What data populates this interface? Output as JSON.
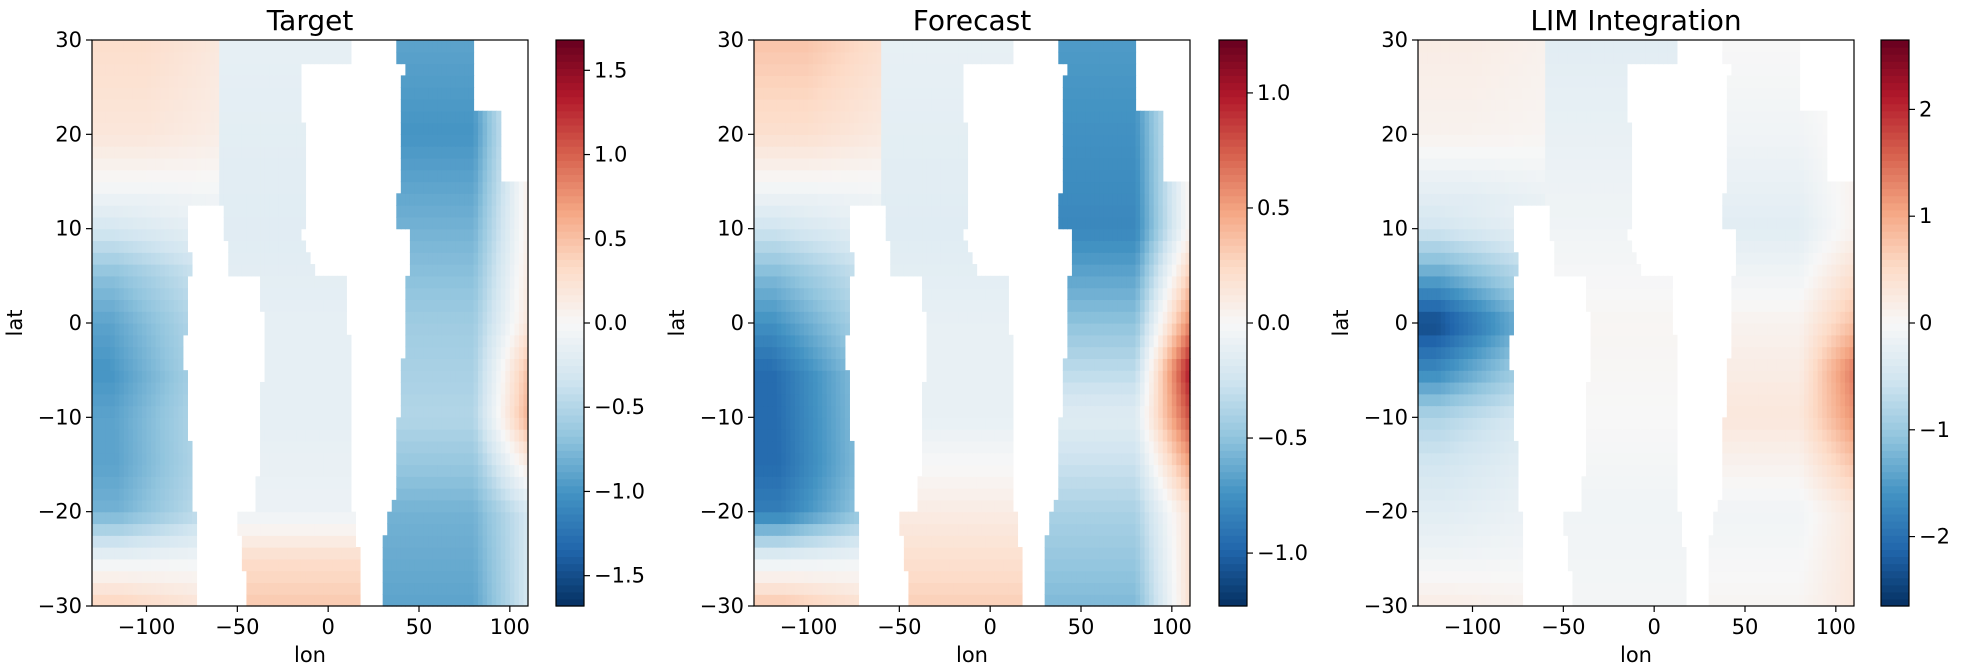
{
  "chart_data": [
    {
      "type": "heatmap",
      "title": "Target",
      "xlabel": "lon",
      "ylabel": "lat",
      "xlim": [
        -130,
        110
      ],
      "ylim": [
        -30,
        30
      ],
      "xticks": [
        -100,
        -50,
        0,
        50,
        100
      ],
      "xtick_labels": [
        "−100",
        "−50",
        "0",
        "50",
        "100"
      ],
      "yticks": [
        -30,
        -20,
        -10,
        0,
        10,
        20,
        30
      ],
      "ytick_labels": [
        "−30",
        "−20",
        "−10",
        "0",
        "10",
        "20",
        "30"
      ],
      "colormap": "RdBu_r",
      "colorbar": {
        "vmin": -1.68,
        "vmax": 1.68,
        "ticks": [
          -1.5,
          -1.0,
          -0.5,
          0.0,
          0.5,
          1.0,
          1.5
        ],
        "tick_labels": [
          "−1.5",
          "−1.0",
          "−0.5",
          "0.0",
          "0.5",
          "1.0",
          "1.5"
        ]
      },
      "field": {
        "west": [
          {
            "lat": 30,
            "value": 0.3
          },
          {
            "lat": 20,
            "value": 0.2
          },
          {
            "lat": 15,
            "value": 0.0
          },
          {
            "lat": 10,
            "value": -0.3
          },
          {
            "lat": 5,
            "value": -0.7
          },
          {
            "lat": 0,
            "value": -0.9
          },
          {
            "lat": -5,
            "value": -1.0
          },
          {
            "lat": -10,
            "value": -0.9
          },
          {
            "lat": -15,
            "value": -0.9
          },
          {
            "lat": -20,
            "value": -0.8
          },
          {
            "lat": -25,
            "value": -0.1
          },
          {
            "lat": -30,
            "value": 0.4
          }
        ],
        "central": [
          {
            "lat": 30,
            "value": -0.15
          },
          {
            "lat": 10,
            "value": -0.2
          },
          {
            "lat": 0,
            "value": -0.15
          },
          {
            "lat": -10,
            "value": -0.15
          },
          {
            "lat": -20,
            "value": -0.1
          },
          {
            "lat": -25,
            "value": 0.3
          },
          {
            "lat": -30,
            "value": 0.45
          }
        ],
        "east": [
          {
            "lat": 30,
            "value": -0.9
          },
          {
            "lat": 20,
            "value": -1.0
          },
          {
            "lat": 10,
            "value": -0.8
          },
          {
            "lat": 0,
            "value": -0.6
          },
          {
            "lat": -10,
            "value": -0.5
          },
          {
            "lat": -20,
            "value": -0.8
          },
          {
            "lat": -30,
            "value": -0.9
          }
        ],
        "east_coast": [
          {
            "lat": 10,
            "value": 0.1
          },
          {
            "lat": 0,
            "value": 0.2
          },
          {
            "lat": -5,
            "value": 0.5
          },
          {
            "lat": -10,
            "value": 0.6
          },
          {
            "lat": -20,
            "value": -0.3
          }
        ]
      }
    },
    {
      "type": "heatmap",
      "title": "Forecast",
      "xlabel": "lon",
      "ylabel": "lat",
      "xlim": [
        -130,
        110
      ],
      "ylim": [
        -30,
        30
      ],
      "xticks": [
        -100,
        -50,
        0,
        50,
        100
      ],
      "xtick_labels": [
        "−100",
        "−50",
        "0",
        "50",
        "100"
      ],
      "yticks": [
        -30,
        -20,
        -10,
        0,
        10,
        20,
        30
      ],
      "ytick_labels": [
        "−30",
        "−20",
        "−10",
        "0",
        "10",
        "20",
        "30"
      ],
      "colormap": "RdBu_r",
      "colorbar": {
        "vmin": -1.23,
        "vmax": 1.23,
        "ticks": [
          -1.0,
          -0.5,
          0.0,
          0.5,
          1.0
        ],
        "tick_labels": [
          "−1.0",
          "−0.5",
          "0.0",
          "0.5",
          "1.0"
        ]
      },
      "field": {
        "west": [
          {
            "lat": 30,
            "value": 0.35
          },
          {
            "lat": 20,
            "value": 0.2
          },
          {
            "lat": 15,
            "value": 0.0
          },
          {
            "lat": 10,
            "value": -0.25
          },
          {
            "lat": 5,
            "value": -0.55
          },
          {
            "lat": 0,
            "value": -0.75
          },
          {
            "lat": -5,
            "value": -0.95
          },
          {
            "lat": -10,
            "value": -0.95
          },
          {
            "lat": -15,
            "value": -0.95
          },
          {
            "lat": -20,
            "value": -0.85
          },
          {
            "lat": -25,
            "value": -0.1
          },
          {
            "lat": -30,
            "value": 0.35
          }
        ],
        "central": [
          {
            "lat": 30,
            "value": -0.1
          },
          {
            "lat": 10,
            "value": -0.15
          },
          {
            "lat": 0,
            "value": -0.1
          },
          {
            "lat": -10,
            "value": -0.1
          },
          {
            "lat": -20,
            "value": 0.1
          },
          {
            "lat": -25,
            "value": 0.2
          },
          {
            "lat": -30,
            "value": 0.3
          }
        ],
        "east": [
          {
            "lat": 30,
            "value": -0.7
          },
          {
            "lat": 20,
            "value": -0.75
          },
          {
            "lat": 10,
            "value": -0.8
          },
          {
            "lat": 0,
            "value": -0.5
          },
          {
            "lat": -10,
            "value": -0.15
          },
          {
            "lat": -20,
            "value": -0.4
          },
          {
            "lat": -30,
            "value": -0.55
          }
        ],
        "east_coast": [
          {
            "lat": 10,
            "value": 0.05
          },
          {
            "lat": 0,
            "value": 0.6
          },
          {
            "lat": -5,
            "value": 1.0
          },
          {
            "lat": -10,
            "value": 0.8
          },
          {
            "lat": -20,
            "value": 0.2
          }
        ]
      }
    },
    {
      "type": "heatmap",
      "title": "LIM Integration",
      "xlabel": "lon",
      "ylabel": "lat",
      "xlim": [
        -130,
        110
      ],
      "ylim": [
        -30,
        30
      ],
      "xticks": [
        -100,
        -50,
        0,
        50,
        100
      ],
      "xtick_labels": [
        "−100",
        "−50",
        "0",
        "50",
        "100"
      ],
      "yticks": [
        -30,
        -20,
        -10,
        0,
        10,
        20,
        30
      ],
      "ytick_labels": [
        "−30",
        "−20",
        "−10",
        "0",
        "10",
        "20",
        "30"
      ],
      "colormap": "RdBu_r",
      "colorbar": {
        "vmin": -2.65,
        "vmax": 2.65,
        "ticks": [
          -2,
          -1,
          0,
          1,
          2
        ],
        "tick_labels": [
          "−2",
          "−1",
          "0",
          "1",
          "2"
        ]
      },
      "field": {
        "west": [
          {
            "lat": 30,
            "value": 0.2
          },
          {
            "lat": 20,
            "value": 0.1
          },
          {
            "lat": 10,
            "value": -0.5
          },
          {
            "lat": 5,
            "value": -1.4
          },
          {
            "lat": 0,
            "value": -2.4
          },
          {
            "lat": -5,
            "value": -1.7
          },
          {
            "lat": -10,
            "value": -0.8
          },
          {
            "lat": -15,
            "value": -0.5
          },
          {
            "lat": -20,
            "value": -0.3
          },
          {
            "lat": -25,
            "value": -0.1
          },
          {
            "lat": -30,
            "value": 0.2
          }
        ],
        "central": [
          {
            "lat": 30,
            "value": -0.3
          },
          {
            "lat": 10,
            "value": -0.1
          },
          {
            "lat": 0,
            "value": 0.05
          },
          {
            "lat": -10,
            "value": 0.0
          },
          {
            "lat": -20,
            "value": -0.1
          },
          {
            "lat": -30,
            "value": -0.05
          }
        ],
        "east": [
          {
            "lat": 30,
            "value": 0.0
          },
          {
            "lat": 20,
            "value": -0.1
          },
          {
            "lat": 10,
            "value": -0.3
          },
          {
            "lat": 0,
            "value": 0.1
          },
          {
            "lat": -10,
            "value": 0.3
          },
          {
            "lat": -20,
            "value": -0.1
          },
          {
            "lat": -30,
            "value": 0.05
          }
        ],
        "east_coast": [
          {
            "lat": 10,
            "value": 0.1
          },
          {
            "lat": 0,
            "value": 0.8
          },
          {
            "lat": -5,
            "value": 1.4
          },
          {
            "lat": -10,
            "value": 1.2
          },
          {
            "lat": -20,
            "value": 0.3
          }
        ]
      }
    }
  ]
}
